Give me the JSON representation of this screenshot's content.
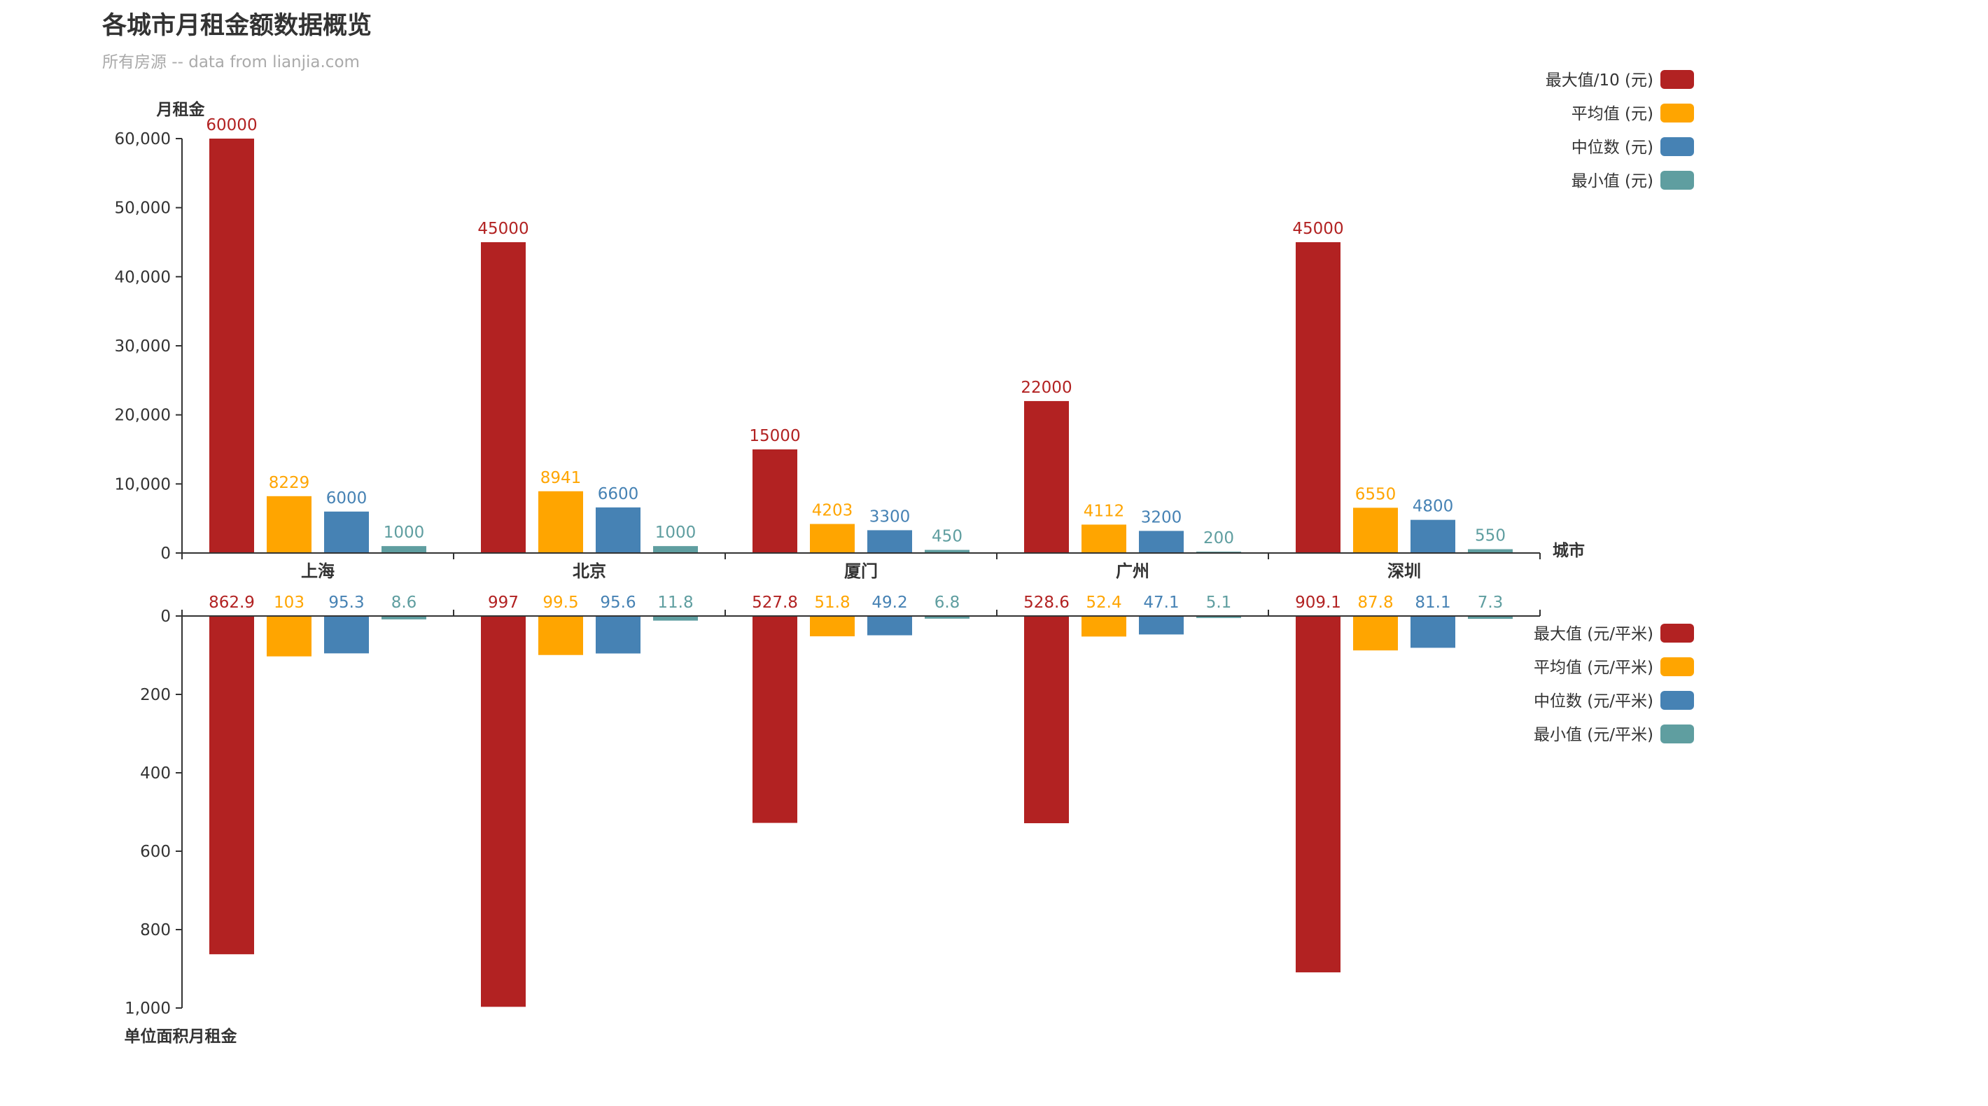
{
  "title": "各城市月租金额数据概览",
  "subtitle": "所有房源 -- data from lianjia.com",
  "chart_data": {
    "type": "bar",
    "categories": [
      "上海",
      "北京",
      "厦门",
      "广州",
      "深圳"
    ],
    "x_axis_name": "城市",
    "grid": false,
    "top": {
      "ylabel": "月租金",
      "ylim": [
        0,
        60000
      ],
      "yticks": [
        0,
        10000,
        20000,
        30000,
        40000,
        50000,
        60000
      ],
      "ytick_labels": [
        "0",
        "10,000",
        "20,000",
        "30,000",
        "40,000",
        "50,000",
        "60,000"
      ],
      "legend_placement": "top-right",
      "series": [
        {
          "name": "最大值/10 (元)",
          "color": "#b22222",
          "values": [
            60000,
            45000,
            15000,
            22000,
            45000
          ]
        },
        {
          "name": "平均值 (元)",
          "color": "#ffa500",
          "values": [
            8229,
            8941,
            4203,
            4112,
            6550
          ]
        },
        {
          "name": "中位数 (元)",
          "color": "#4682b4",
          "values": [
            6000,
            6600,
            3300,
            3200,
            4800
          ]
        },
        {
          "name": "最小值 (元)",
          "color": "#5f9ea0",
          "values": [
            1000,
            1000,
            450,
            200,
            550
          ]
        }
      ]
    },
    "bottom": {
      "ylabel": "单位面积月租金",
      "ylim": [
        0,
        1000
      ],
      "inverted": true,
      "yticks": [
        0,
        200,
        400,
        600,
        800,
        1000
      ],
      "ytick_labels": [
        "0",
        "200",
        "400",
        "600",
        "800",
        "1,000"
      ],
      "legend_placement": "right",
      "series": [
        {
          "name": "最大值 (元/平米)",
          "color": "#b22222",
          "values": [
            862.9,
            997,
            527.8,
            528.6,
            909.1
          ]
        },
        {
          "name": "平均值 (元/平米)",
          "color": "#ffa500",
          "values": [
            103,
            99.5,
            51.8,
            52.4,
            87.8
          ]
        },
        {
          "name": "中位数 (元/平米)",
          "color": "#4682b4",
          "values": [
            95.3,
            95.6,
            49.2,
            47.1,
            81.1
          ]
        },
        {
          "name": "最小值 (元/平米)",
          "color": "#5f9ea0",
          "values": [
            8.6,
            11.8,
            6.8,
            5.1,
            7.3
          ]
        }
      ]
    }
  }
}
